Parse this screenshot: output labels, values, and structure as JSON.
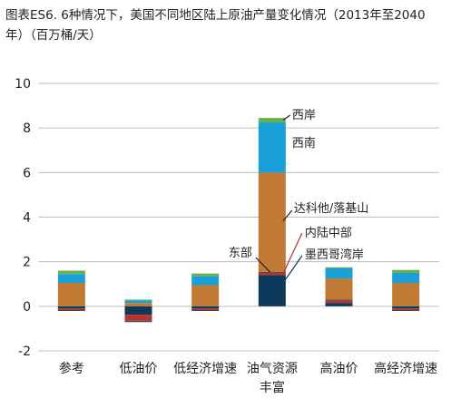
{
  "chart_data": {
    "type": "bar",
    "stacked": true,
    "title": "图表ES6. 6种情况下，美国不同地区陆上原油产量变化情况（2013年至2040年）（百万桶/天）",
    "xlabel": "",
    "ylabel": "",
    "ylim": [
      -2,
      10
    ],
    "yticks": [
      "10",
      "8",
      "6",
      "4",
      "2",
      "0",
      "-2"
    ],
    "grid": true,
    "legend": "none",
    "categories": [
      "参考",
      "低油价",
      "低经济增速",
      "油气资源丰富",
      "高油价",
      "高经济增速"
    ],
    "series": [
      {
        "name": "墨西哥湾岸",
        "color": "#0d3a5c",
        "values": [
          -0.1,
          -0.38,
          -0.1,
          1.4,
          0.15,
          -0.1
        ]
      },
      {
        "name": "内陆中部",
        "color": "#c0312b",
        "values": [
          -0.05,
          -0.25,
          -0.05,
          0.1,
          0.1,
          -0.05
        ]
      },
      {
        "name": "东部",
        "color": "#4a4a4a",
        "values": [
          -0.06,
          -0.08,
          -0.06,
          0.05,
          0.05,
          -0.06
        ]
      },
      {
        "name": "达科他/落基山",
        "color": "#c07a33",
        "values": [
          1.05,
          0.15,
          0.95,
          4.45,
          0.95,
          1.05
        ]
      },
      {
        "name": "西南",
        "color": "#1aa0d8",
        "values": [
          0.4,
          0.12,
          0.4,
          2.25,
          0.45,
          0.45
        ]
      },
      {
        "name": "西岸",
        "color": "#6ab04c",
        "values": [
          0.15,
          0.03,
          0.12,
          0.2,
          0.05,
          0.13
        ]
      }
    ]
  }
}
